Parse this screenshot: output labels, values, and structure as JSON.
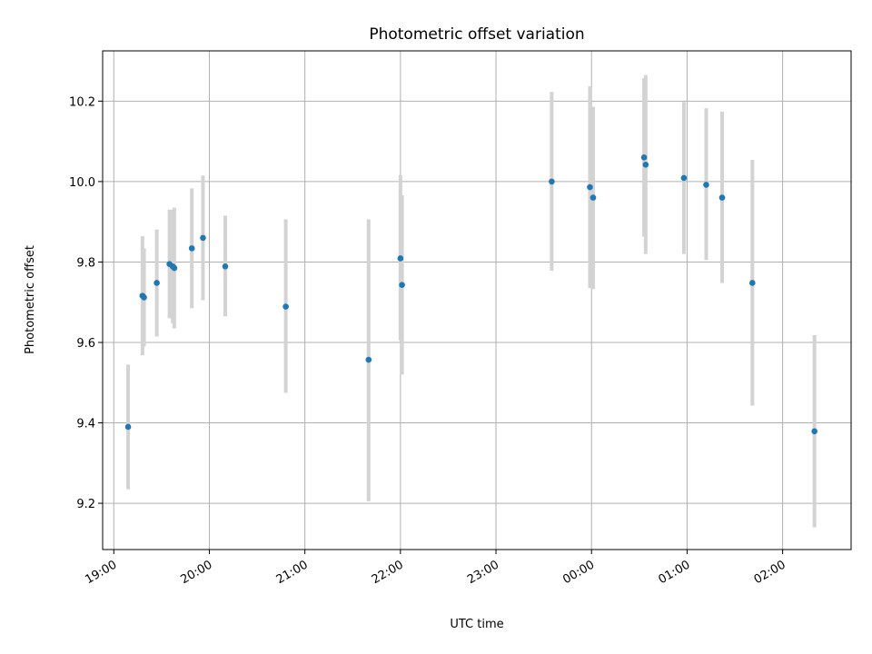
{
  "chart_data": {
    "type": "scatter",
    "title": "Photometric offset variation",
    "xlabel": "UTC time",
    "ylabel": "Photometric offset",
    "xlim": [
      "2000-01-01T18:53:00",
      "2000-01-02T02:43:00"
    ],
    "ylim": [
      9.085,
      10.325
    ],
    "x_ticks": [
      {
        "value": "2000-01-01T19:00:00",
        "label": "19:00"
      },
      {
        "value": "2000-01-01T20:00:00",
        "label": "20:00"
      },
      {
        "value": "2000-01-01T21:00:00",
        "label": "21:00"
      },
      {
        "value": "2000-01-01T22:00:00",
        "label": "22:00"
      },
      {
        "value": "2000-01-01T23:00:00",
        "label": "23:00"
      },
      {
        "value": "2000-01-02T00:00:00",
        "label": "00:00"
      },
      {
        "value": "2000-01-02T01:00:00",
        "label": "01:00"
      },
      {
        "value": "2000-01-02T02:00:00",
        "label": "02:00"
      }
    ],
    "y_ticks": [
      {
        "value": 9.2,
        "label": "9.2"
      },
      {
        "value": 9.4,
        "label": "9.4"
      },
      {
        "value": 9.6,
        "label": "9.6"
      },
      {
        "value": 9.8,
        "label": "9.8"
      },
      {
        "value": 10.0,
        "label": "10.0"
      },
      {
        "value": 10.2,
        "label": "10.2"
      }
    ],
    "grid": true,
    "marker_color": "#1f77b4",
    "errorbar_color": "#d3d3d3",
    "points": [
      {
        "t": "2000-01-01T19:09:00",
        "y": 9.39,
        "low": 9.235,
        "high": 9.545
      },
      {
        "t": "2000-01-01T19:18:00",
        "y": 9.716,
        "low": 9.568,
        "high": 9.864
      },
      {
        "t": "2000-01-01T19:19:00",
        "y": 9.712,
        "low": 9.59,
        "high": 9.834
      },
      {
        "t": "2000-01-01T19:27:00",
        "y": 9.748,
        "low": 9.615,
        "high": 9.881
      },
      {
        "t": "2000-01-01T19:35:00",
        "y": 9.795,
        "low": 9.66,
        "high": 9.93
      },
      {
        "t": "2000-01-01T19:37:00",
        "y": 9.789,
        "low": 9.648,
        "high": 9.93
      },
      {
        "t": "2000-01-01T19:38:00",
        "y": 9.785,
        "low": 9.635,
        "high": 9.935
      },
      {
        "t": "2000-01-01T19:49:00",
        "y": 9.834,
        "low": 9.685,
        "high": 9.983
      },
      {
        "t": "2000-01-01T19:56:00",
        "y": 9.86,
        "low": 9.705,
        "high": 10.015
      },
      {
        "t": "2000-01-01T20:10:00",
        "y": 9.789,
        "low": 9.665,
        "high": 9.915
      },
      {
        "t": "2000-01-01T20:48:00",
        "y": 9.689,
        "low": 9.475,
        "high": 9.906
      },
      {
        "t": "2000-01-01T21:40:00",
        "y": 9.557,
        "low": 9.205,
        "high": 9.906
      },
      {
        "t": "2000-01-01T22:00:00",
        "y": 9.809,
        "low": 9.605,
        "high": 10.016
      },
      {
        "t": "2000-01-01T22:01:00",
        "y": 9.743,
        "low": 9.52,
        "high": 9.966
      },
      {
        "t": "2000-01-01T23:35:00",
        "y": 10.0,
        "low": 9.778,
        "high": 10.223
      },
      {
        "t": "2000-01-01T23:59:00",
        "y": 9.986,
        "low": 9.735,
        "high": 10.237
      },
      {
        "t": "2000-01-02T00:01:00",
        "y": 9.96,
        "low": 9.733,
        "high": 10.186
      },
      {
        "t": "2000-01-02T00:33:00",
        "y": 10.06,
        "low": 9.863,
        "high": 10.257
      },
      {
        "t": "2000-01-02T00:34:00",
        "y": 10.042,
        "low": 9.82,
        "high": 10.265
      },
      {
        "t": "2000-01-02T00:58:00",
        "y": 10.009,
        "low": 9.82,
        "high": 10.198
      },
      {
        "t": "2000-01-02T01:12:00",
        "y": 9.992,
        "low": 9.805,
        "high": 10.182
      },
      {
        "t": "2000-01-02T01:22:00",
        "y": 9.96,
        "low": 9.748,
        "high": 10.174
      },
      {
        "t": "2000-01-02T01:41:00",
        "y": 9.748,
        "low": 9.443,
        "high": 10.054
      },
      {
        "t": "2000-01-02T02:20:00",
        "y": 9.379,
        "low": 9.14,
        "high": 9.618
      }
    ]
  }
}
